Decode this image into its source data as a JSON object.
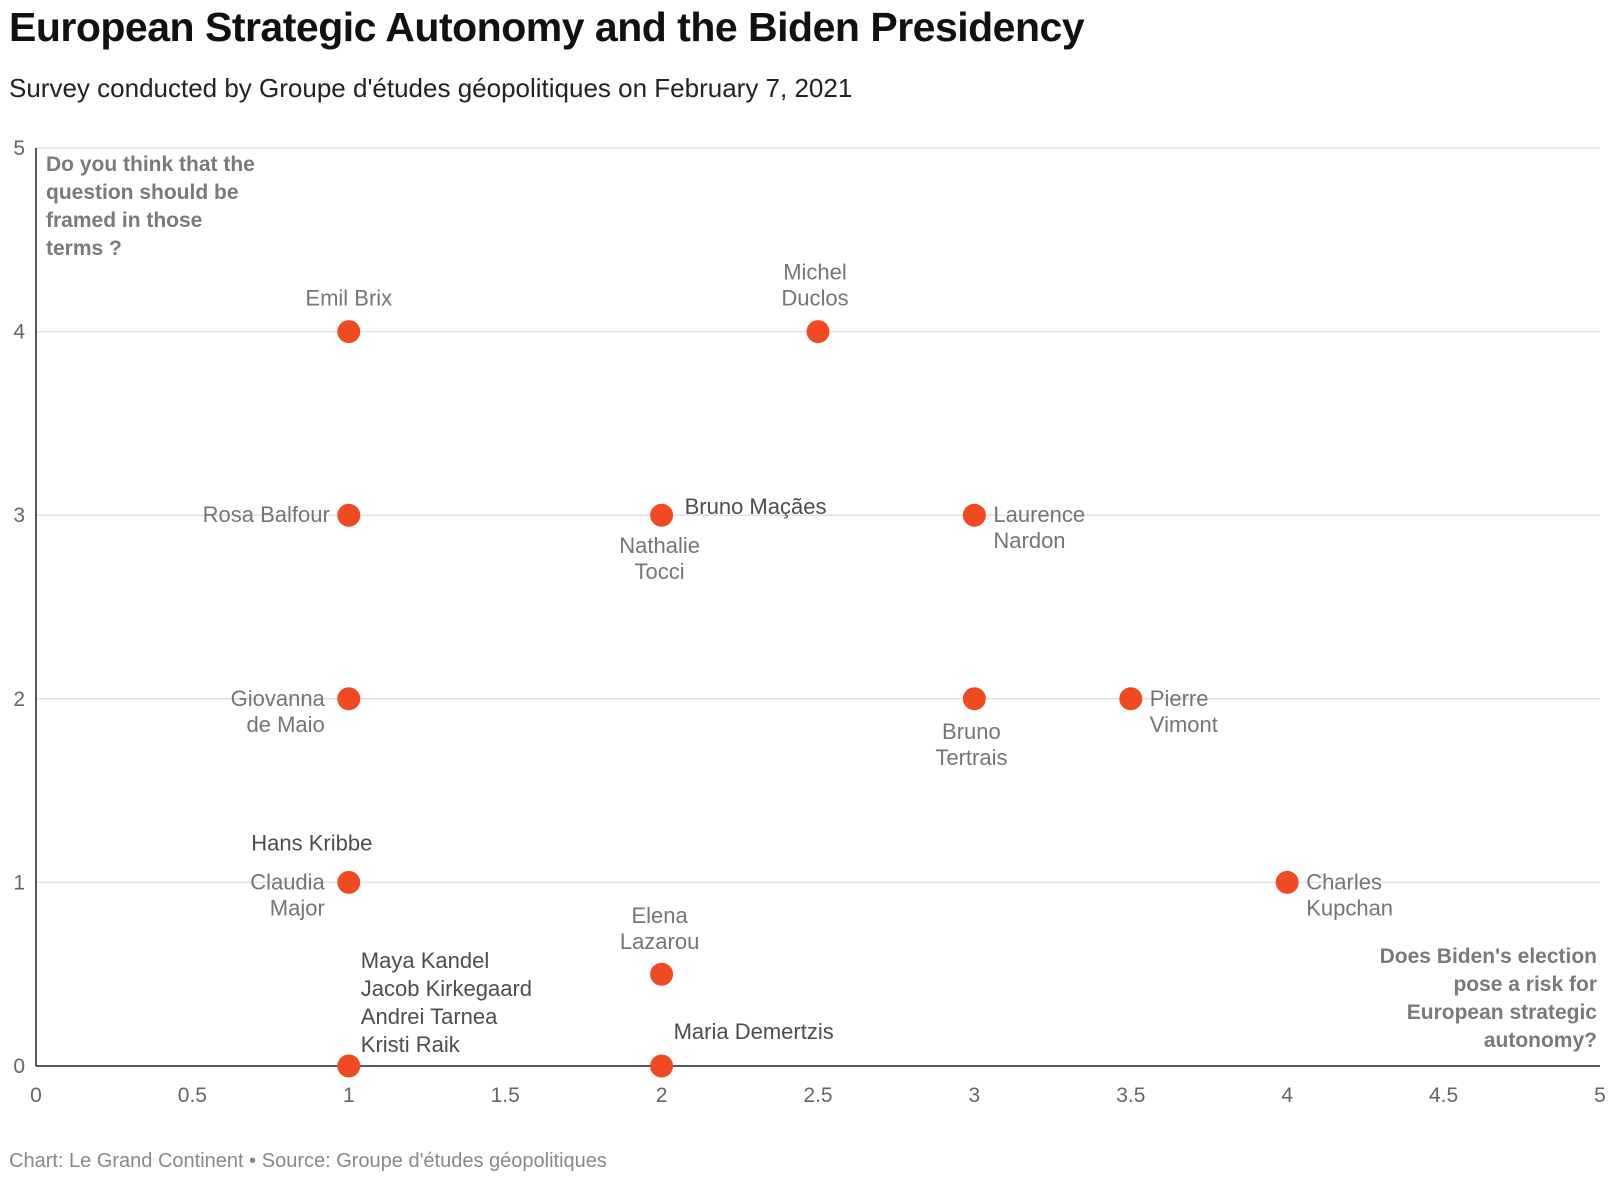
{
  "title": "European Strategic Autonomy and the Biden Presidency",
  "subtitle": "Survey conducted by Groupe d'études géopolitiques on February 7, 2021",
  "footer": {
    "chart_credit": "Chart: Le Grand Continent",
    "separator": "•",
    "source": "Source: Groupe d'études géopolitiques"
  },
  "colors": {
    "point": "#f04a23",
    "grid": "#e2e2e2",
    "axis": "#222222"
  },
  "chart_data": {
    "type": "scatter",
    "xlim": [
      0,
      5
    ],
    "ylim": [
      0,
      5
    ],
    "x_ticks": [
      "0",
      "0.5",
      "1",
      "1.5",
      "2",
      "2.5",
      "3",
      "3.5",
      "4",
      "4.5",
      "5"
    ],
    "y_ticks": [
      "0",
      "1",
      "2",
      "3",
      "4",
      "5"
    ],
    "grid": "horizontal",
    "annotations": {
      "y_question": [
        "Do you think that the",
        "question should be",
        "framed in those",
        "terms ?"
      ],
      "x_question": [
        "Does Biden's election",
        "pose a risk for",
        "European strategic",
        "autonomy?"
      ]
    },
    "points": [
      {
        "x": 1,
        "y": 4,
        "label": [
          "Emil Brix"
        ]
      },
      {
        "x": 2.5,
        "y": 4,
        "label": [
          "Michel",
          "Duclos"
        ]
      },
      {
        "x": 1,
        "y": 3,
        "label": [
          "Rosa Balfour"
        ]
      },
      {
        "x": 2,
        "y": 3,
        "label": [
          "Bruno Maçães"
        ]
      },
      {
        "x": 2,
        "y": 3,
        "label": [
          "Nathalie",
          "Tocci"
        ]
      },
      {
        "x": 3,
        "y": 3,
        "label": [
          "Laurence",
          "Nardon"
        ]
      },
      {
        "x": 1,
        "y": 2,
        "label": [
          "Giovanna",
          "de Maio"
        ]
      },
      {
        "x": 3,
        "y": 2,
        "label": [
          "Bruno",
          "Tertrais"
        ]
      },
      {
        "x": 3.5,
        "y": 2,
        "label": [
          "Pierre",
          "Vimont"
        ]
      },
      {
        "x": 1,
        "y": 1,
        "label": [
          "Hans Kribbe"
        ]
      },
      {
        "x": 1,
        "y": 1,
        "label": [
          "Claudia",
          "Major"
        ]
      },
      {
        "x": 4,
        "y": 1,
        "label": [
          "Charles",
          "Kupchan"
        ]
      },
      {
        "x": 2,
        "y": 0.5,
        "label": [
          "Elena",
          "Lazarou"
        ]
      },
      {
        "x": 1,
        "y": 0,
        "label": [
          "Maya Kandel",
          "Jacob Kirkegaard",
          "Andrei Tarnea",
          "Kristi Raik"
        ]
      },
      {
        "x": 2,
        "y": 0,
        "label": [
          "Maria Demertzis"
        ]
      }
    ]
  }
}
